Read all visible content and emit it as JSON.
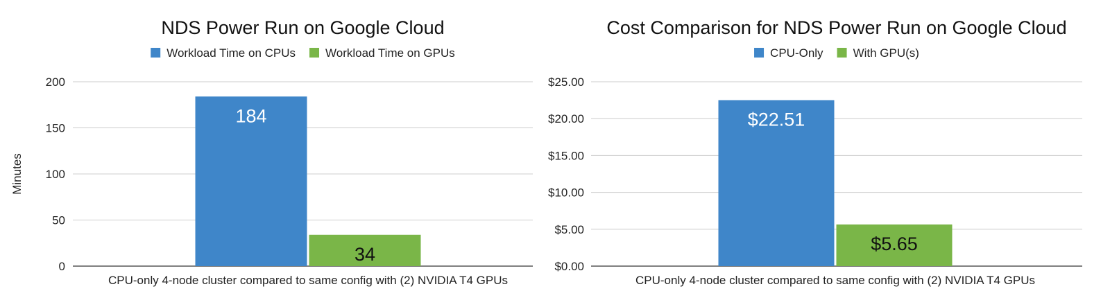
{
  "chart_data": [
    {
      "type": "bar",
      "title": "NDS Power Run on Google Cloud",
      "xlabel": "",
      "ylabel": "Minutes",
      "categories": [
        "CPU-only 4-node cluster compared to same config with (2) NVIDIA T4 GPUs"
      ],
      "series": [
        {
          "name": "Workload Time on CPUs",
          "values": [
            184
          ],
          "labels": [
            "184"
          ],
          "color": "#3f86c9",
          "label_color": "#ffffff"
        },
        {
          "name": "Workload Time on GPUs",
          "values": [
            34
          ],
          "labels": [
            "34"
          ],
          "color": "#7ab648",
          "label_color": "#111111"
        }
      ],
      "ylim": [
        0,
        200
      ],
      "yticks": [
        0,
        50,
        100,
        150,
        200
      ],
      "ytick_labels": [
        "0",
        "50",
        "100",
        "150",
        "200"
      ],
      "grid": true,
      "legend": "top-center"
    },
    {
      "type": "bar",
      "title": "Cost Comparison for NDS Power Run on Google Cloud",
      "xlabel": "",
      "ylabel": "",
      "categories": [
        "CPU-only 4-node cluster compared to same config with (2) NVIDIA T4 GPUs"
      ],
      "series": [
        {
          "name": "CPU-Only",
          "values": [
            22.51
          ],
          "labels": [
            "$22.51"
          ],
          "color": "#3f86c9",
          "label_color": "#ffffff"
        },
        {
          "name": "With GPU(s)",
          "values": [
            5.65
          ],
          "labels": [
            "$5.65"
          ],
          "color": "#7ab648",
          "label_color": "#111111"
        }
      ],
      "ylim": [
        0,
        25
      ],
      "yticks": [
        0,
        5,
        10,
        15,
        20,
        25
      ],
      "ytick_labels": [
        "$0.00",
        "$5.00",
        "$10.00",
        "$15.00",
        "$20.00",
        "$25.00"
      ],
      "grid": true,
      "legend": "top-center"
    }
  ]
}
